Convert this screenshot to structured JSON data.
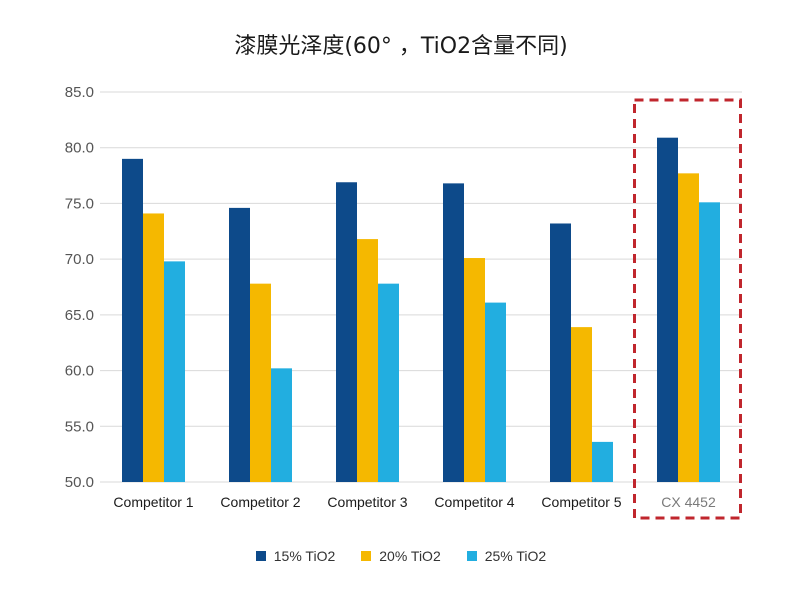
{
  "chart_data": {
    "type": "bar",
    "title": "漆膜光泽度(60°  ，TiO2含量不同)",
    "xlabel": "",
    "ylabel": "",
    "ylim": [
      50,
      85
    ],
    "yticks": [
      "50.0",
      "55.0",
      "60.0",
      "65.0",
      "70.0",
      "75.0",
      "80.0",
      "85.0"
    ],
    "grid": true,
    "legend_position": "bottom",
    "categories": [
      "Competitor 1",
      "Competitor 2",
      "Competitor 3",
      "Competitor 4",
      "Competitor 5",
      "CX 4452"
    ],
    "highlight_category": "CX 4452",
    "series": [
      {
        "name": "15% TiO2",
        "color": "#0d4a8a",
        "values": [
          79.0,
          74.6,
          76.9,
          76.8,
          73.2,
          80.9
        ]
      },
      {
        "name": "20% TiO2",
        "color": "#f5b800",
        "values": [
          74.1,
          67.8,
          71.8,
          70.1,
          63.9,
          77.7
        ]
      },
      {
        "name": "25% TiO2",
        "color": "#22aee0",
        "values": [
          69.8,
          60.2,
          67.8,
          66.1,
          53.6,
          75.1
        ]
      }
    ],
    "highlight_color": "#c0262d"
  }
}
